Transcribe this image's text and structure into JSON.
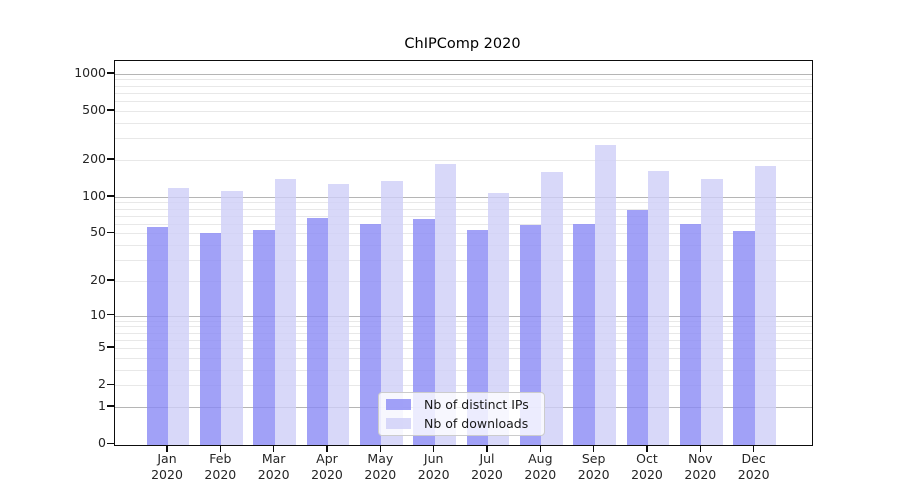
{
  "title": "ChIPComp 2020",
  "colors": {
    "ips_bar": "rgba(138,138,245,0.8)",
    "downloads_bar": "rgba(206,206,248,0.8)",
    "major_grid": "#b5b5b5",
    "minor_grid": "#e8e8e8",
    "axis": "#0d0d0d",
    "tick_text": "#262626"
  },
  "legend": {
    "items": [
      {
        "label": "Nb of distinct IPs",
        "series": "ips"
      },
      {
        "label": "Nb of downloads",
        "series": "downloads"
      }
    ]
  },
  "chart_data": {
    "type": "bar",
    "title": "ChIPComp 2020",
    "categories": [
      "Jan 2020",
      "Feb 2020",
      "Mar 2020",
      "Apr 2020",
      "May 2020",
      "Jun 2020",
      "Jul 2020",
      "Aug 2020",
      "Sep 2020",
      "Oct 2020",
      "Nov 2020",
      "Dec 2020"
    ],
    "series": [
      {
        "name": "Nb of distinct IPs",
        "values": [
          57,
          50,
          53,
          67,
          60,
          66,
          53,
          59,
          60,
          78,
          60,
          52
        ]
      },
      {
        "name": "Nb of downloads",
        "values": [
          118,
          112,
          140,
          128,
          135,
          186,
          108,
          158,
          265,
          163,
          141,
          179
        ]
      }
    ],
    "xlabel": "",
    "ylabel": "",
    "yscale": "log1p",
    "y_ticks": [
      0,
      1,
      2,
      5,
      10,
      20,
      50,
      100,
      200,
      500,
      1000
    ],
    "ylim": [
      0,
      1270
    ],
    "grid": true,
    "legend_position": "lower center"
  }
}
